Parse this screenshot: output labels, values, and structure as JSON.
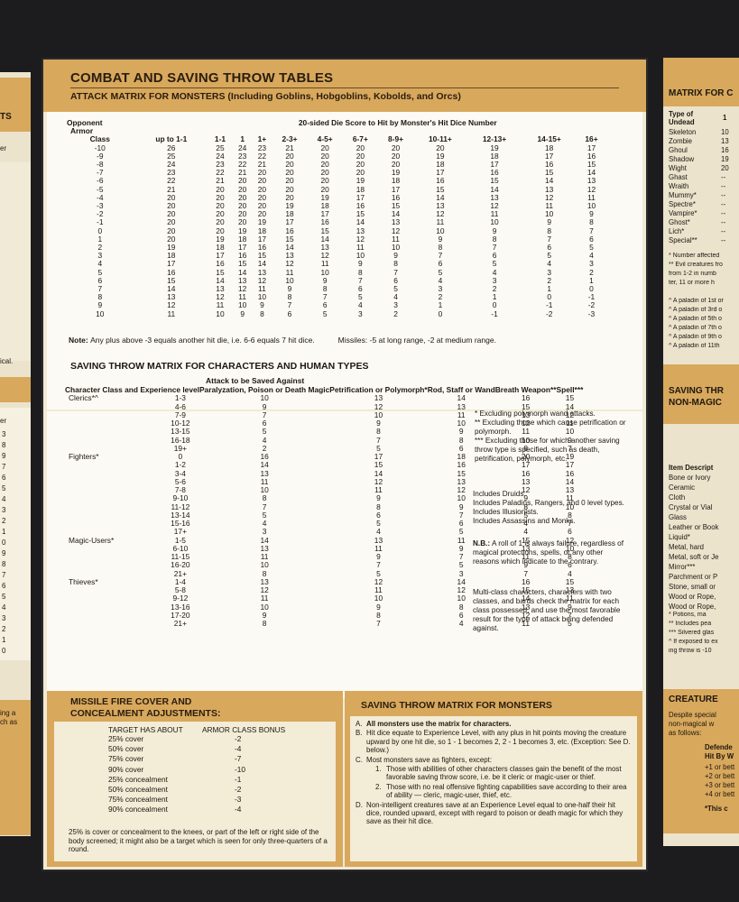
{
  "left_panel": {
    "top_fragment": "TS",
    "fragment2": "er",
    "fragment3": "ical.",
    "fragment4": "er",
    "numbers": [
      "3",
      "8",
      "9",
      "7",
      "6",
      "5",
      "4",
      "3",
      "2",
      "1",
      "0",
      "9",
      "8",
      "7",
      "6",
      "5",
      "4",
      "3",
      "2",
      "1",
      "0"
    ],
    "bottom1": "ing a",
    "bottom2": "ch as"
  },
  "sheet": {
    "title": "COMBAT AND SAVING THROW TABLES",
    "subtitle": "ATTACK MATRIX FOR MONSTERS (Including Goblins, Hobgoblins, Kobolds, and Orcs)"
  },
  "attack_matrix": {
    "top_header": "20-sided Die Score to Hit by Monster's Hit Dice Number",
    "row_label_1": "Opponent",
    "row_label_2": "Armor",
    "row_label_3": "Class",
    "columns": [
      "up to 1-1",
      "1-1",
      "1",
      "1+",
      "2-3+",
      "4-5+",
      "6-7+",
      "8-9+",
      "10-11+",
      "12-13+",
      "14-15+",
      "16+"
    ],
    "rows": [
      [
        "-10",
        "26",
        "25",
        "24",
        "23",
        "21",
        "20",
        "20",
        "20",
        "20",
        "19",
        "18",
        "17"
      ],
      [
        "-9",
        "25",
        "24",
        "23",
        "22",
        "20",
        "20",
        "20",
        "20",
        "19",
        "18",
        "17",
        "16"
      ],
      [
        "-8",
        "24",
        "23",
        "22",
        "21",
        "20",
        "20",
        "20",
        "20",
        "18",
        "17",
        "16",
        "15"
      ],
      [
        "-7",
        "23",
        "22",
        "21",
        "20",
        "20",
        "20",
        "20",
        "19",
        "17",
        "16",
        "15",
        "14"
      ],
      [
        "-6",
        "22",
        "21",
        "20",
        "20",
        "20",
        "20",
        "19",
        "18",
        "16",
        "15",
        "14",
        "13"
      ],
      [
        "-5",
        "21",
        "20",
        "20",
        "20",
        "20",
        "20",
        "18",
        "17",
        "15",
        "14",
        "13",
        "12"
      ],
      [
        "-4",
        "20",
        "20",
        "20",
        "20",
        "20",
        "19",
        "17",
        "16",
        "14",
        "13",
        "12",
        "11"
      ],
      [
        "-3",
        "20",
        "20",
        "20",
        "20",
        "19",
        "18",
        "16",
        "15",
        "13",
        "12",
        "11",
        "10"
      ],
      [
        "-2",
        "20",
        "20",
        "20",
        "20",
        "18",
        "17",
        "15",
        "14",
        "12",
        "11",
        "10",
        "9"
      ],
      [
        "-1",
        "20",
        "20",
        "20",
        "19",
        "17",
        "16",
        "14",
        "13",
        "11",
        "10",
        "9",
        "8"
      ],
      [
        "0",
        "20",
        "20",
        "19",
        "18",
        "16",
        "15",
        "13",
        "12",
        "10",
        "9",
        "8",
        "7"
      ],
      [
        "1",
        "20",
        "19",
        "18",
        "17",
        "15",
        "14",
        "12",
        "11",
        "9",
        "8",
        "7",
        "6"
      ],
      [
        "2",
        "19",
        "18",
        "17",
        "16",
        "14",
        "13",
        "11",
        "10",
        "8",
        "7",
        "6",
        "5"
      ],
      [
        "3",
        "18",
        "17",
        "16",
        "15",
        "13",
        "12",
        "10",
        "9",
        "7",
        "6",
        "5",
        "4"
      ],
      [
        "4",
        "17",
        "16",
        "15",
        "14",
        "12",
        "11",
        "9",
        "8",
        "6",
        "5",
        "4",
        "3"
      ],
      [
        "5",
        "16",
        "15",
        "14",
        "13",
        "11",
        "10",
        "8",
        "7",
        "5",
        "4",
        "3",
        "2"
      ],
      [
        "6",
        "15",
        "14",
        "13",
        "12",
        "10",
        "9",
        "7",
        "6",
        "4",
        "3",
        "2",
        "1"
      ],
      [
        "7",
        "14",
        "13",
        "12",
        "11",
        "9",
        "8",
        "6",
        "5",
        "3",
        "2",
        "1",
        "0"
      ],
      [
        "8",
        "13",
        "12",
        "11",
        "10",
        "8",
        "7",
        "5",
        "4",
        "2",
        "1",
        "0",
        "-1"
      ],
      [
        "9",
        "12",
        "11",
        "10",
        "9",
        "7",
        "6",
        "4",
        "3",
        "1",
        "0",
        "-1",
        "-2"
      ],
      [
        "10",
        "11",
        "10",
        "9",
        "8",
        "6",
        "5",
        "3",
        "2",
        "0",
        "-1",
        "-2",
        "-3"
      ]
    ],
    "note_label": "Note:",
    "note": "Any plus above -3 equals another hit die, i.e. 6-6 equals 7 hit dice.",
    "missiles_label": "Missiles:",
    "missiles": "-5 at long range, -2 at medium range."
  },
  "saving_matrix": {
    "title": "SAVING THROW MATRIX FOR CHARACTERS AND HUMAN TYPES",
    "attack_header": "Attack to be Saved Against",
    "col_class": "Character Class and Experience level",
    "col_paralyzation": "Paralyzation, Poison or Death Magic",
    "col_petrification": "Petrification or Polymorph*",
    "col_rod": "Rod, Staff or Wand",
    "col_breath": "Breath Weapon**",
    "col_spell": "Spell***",
    "rows": [
      [
        "Clerics*^",
        "1-3",
        "10",
        "13",
        "14",
        "16",
        "15"
      ],
      [
        "",
        "4-6",
        "9",
        "12",
        "13",
        "15",
        "14"
      ],
      [
        "",
        "7-9",
        "7",
        "10",
        "11",
        "13",
        "12"
      ],
      [
        "",
        "10-12",
        "6",
        "9",
        "10",
        "12",
        "11"
      ],
      [
        "",
        "13-15",
        "5",
        "8",
        "9",
        "11",
        "10"
      ],
      [
        "",
        "16-18",
        "4",
        "7",
        "8",
        "10",
        "9"
      ],
      [
        "",
        "19+",
        "2",
        "5",
        "6",
        "8",
        "7"
      ],
      [
        "Fighters*",
        "0",
        "16",
        "17",
        "18",
        "20",
        "19"
      ],
      [
        "",
        "1-2",
        "14",
        "15",
        "16",
        "17",
        "17"
      ],
      [
        "",
        "3-4",
        "13",
        "14",
        "15",
        "16",
        "16"
      ],
      [
        "",
        "5-6",
        "11",
        "12",
        "13",
        "13",
        "14"
      ],
      [
        "",
        "7-8",
        "10",
        "11",
        "12",
        "12",
        "13"
      ],
      [
        "",
        "9-10",
        "8",
        "9",
        "10",
        "9",
        "11"
      ],
      [
        "",
        "11-12",
        "7",
        "8",
        "9",
        "8",
        "10"
      ],
      [
        "",
        "13-14",
        "5",
        "6",
        "7",
        "5",
        "8"
      ],
      [
        "",
        "15-16",
        "4",
        "5",
        "6",
        "4",
        "7"
      ],
      [
        "",
        "17+",
        "3",
        "4",
        "5",
        "4",
        "6"
      ],
      [
        "Magic-Users*",
        "1-5",
        "14",
        "13",
        "11",
        "15",
        "12"
      ],
      [
        "",
        "6-10",
        "13",
        "11",
        "9",
        "13",
        "10"
      ],
      [
        "",
        "11-15",
        "11",
        "9",
        "7",
        "11",
        "8"
      ],
      [
        "",
        "16-20",
        "10",
        "7",
        "5",
        "9",
        "6"
      ],
      [
        "",
        "21+",
        "8",
        "5",
        "3",
        "7",
        "4"
      ],
      [
        "Thieves*",
        "1-4",
        "13",
        "12",
        "14",
        "16",
        "15"
      ],
      [
        "",
        "5-8",
        "12",
        "11",
        "12",
        "15",
        "13"
      ],
      [
        "",
        "9-12",
        "11",
        "10",
        "10",
        "14",
        "11"
      ],
      [
        "",
        "13-16",
        "10",
        "9",
        "8",
        "13",
        "9"
      ],
      [
        "",
        "17-20",
        "9",
        "8",
        "6",
        "12",
        "7"
      ],
      [
        "",
        "21+",
        "8",
        "7",
        "4",
        "11",
        "5"
      ]
    ],
    "notes": [
      {
        "mark": "*",
        "text": "Excluding polymorph wand attacks."
      },
      {
        "mark": "**",
        "text": "Excluding those which cause petrification or polymorph."
      },
      {
        "mark": "***",
        "text": "Excluding those for which another saving throw type is specified, such as death, petrification, polymorph, etc."
      }
    ],
    "includes": [
      "Includes Druids.",
      "Includes Paladins, Rangers, and 0 level types.",
      "Includes Illusionists.",
      "Includes Assassins and Monks."
    ],
    "nb_label": "N.B.:",
    "nb_text": "A roll of 1 is always failure, regardless of magical protections, spells, or any other reasons which indicate to the contrary.",
    "multiclass": "Multi-class characters, characters with two classes, and bards check the matrix for each class possessed, and use the most favorable result for the type of attack being defended against."
  },
  "missile_cover": {
    "title_1": "MISSILE FIRE COVER AND",
    "title_2": "CONCEALMENT ADJUSTMENTS:",
    "col_target": "TARGET HAS ABOUT",
    "col_bonus": "ARMOR CLASS BONUS",
    "rows": [
      [
        "25% cover",
        "-2"
      ],
      [
        "50% cover",
        "-4"
      ],
      [
        "75% cover",
        "-7"
      ],
      [
        "90% cover",
        "-10"
      ],
      [
        "25% concealment",
        "-1"
      ],
      [
        "50% concealment",
        "-2"
      ],
      [
        "75% concealment",
        "-3"
      ],
      [
        "90% concealment",
        "-4"
      ]
    ],
    "footnote": "25% is cover or concealment to the knees, or part of the left or right side of the body screened; it might also be a target which is seen for only three-quarters of a round."
  },
  "monster_saves": {
    "title": "SAVING THROW MATRIX FOR MONSTERS",
    "items": [
      {
        "label": "A.",
        "text": "All monsters use the matrix for characters."
      },
      {
        "label": "B.",
        "text": "Hit dice equate to Experience Level, with any plus in hit points moving the creature upward by one hit die, so 1 - 1 becomes 2, 2 - 1 becomes 3, etc. (Exception: See D. below.)"
      },
      {
        "label": "C.",
        "text": "Most monsters save as fighters, except:"
      },
      {
        "label": "1.",
        "text": "Those with abilities of other characters classes gain the benefit of the most favorable saving throw score, i.e. be it cleric or magic-user or thief."
      },
      {
        "label": "2.",
        "text": "Those with no real offensive fighting capabilities save according to their area of ability — cleric, magic-user, thief, etc."
      },
      {
        "label": "D.",
        "text": "Non-intelligent creatures save at an Experience Level equal to one-half their hit dice, rounded upward, except with regard to poison or death magic for which they save as their hit dice."
      }
    ]
  },
  "right_panel": {
    "header1": "MATRIX FOR C",
    "col1": "Type of",
    "col1b": "Undead",
    "col2": "1",
    "undead": [
      [
        "Skeleton",
        "10"
      ],
      [
        "Zombie",
        "13"
      ],
      [
        "Ghoul",
        "16"
      ],
      [
        "Shadow",
        "19"
      ],
      [
        "Wight",
        "20"
      ],
      [
        "Ghast",
        "--"
      ],
      [
        "Wraith",
        "--"
      ],
      [
        "Mummy*",
        "--"
      ],
      [
        "Spectre*",
        "--"
      ],
      [
        "Vampire*",
        "--"
      ],
      [
        "Ghost*",
        "--"
      ],
      [
        "Lich*",
        "--"
      ],
      [
        "Special**",
        "--"
      ]
    ],
    "notes": [
      "* Number affected",
      "** Evil creatures fro",
      "from 1-2 in numb",
      "ter, 11 or more h",
      "^ A paladin of 1st or",
      "^ A paladin of 3rd o",
      "^ A paladin of 5th o",
      "^ A paladin of 7th o",
      "^ A paladin of 9th o",
      "^ A paladin of 11th"
    ],
    "header2a": "SAVING THR",
    "header2b": "NON-MAGIC",
    "items_title": "Item Descript",
    "items": [
      "Bone or Ivory",
      "Ceramic",
      "Cloth",
      "Crystal or Vial",
      "Glass",
      "Leather or Book",
      "Liquid*",
      "Metal, hard",
      "Metal, soft or Je",
      "Mirror***",
      "Parchment or P",
      "Stone, small or",
      "Wood or Rope,",
      "Wood or Rope,"
    ],
    "items_notes": [
      "* Potions, ma",
      "** Includes pea",
      "*** Silvered glas",
      "^ If exposed to ex",
      "ing throw is -10"
    ],
    "header3": "CREATURE",
    "h3_text": [
      "Despite special",
      "non-magical w",
      "as follows:"
    ],
    "h3_col": [
      "Defende",
      "Hit By W"
    ],
    "h3_rows": [
      "+1 or bett",
      "+2 or bett",
      "+3 or bett",
      "+4 or bett"
    ],
    "h3_foot": "*This c"
  }
}
